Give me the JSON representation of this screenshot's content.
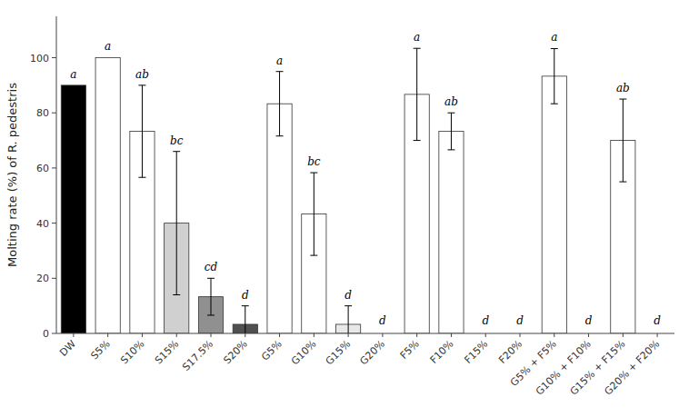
{
  "chart_data": {
    "type": "bar",
    "categories": [
      "DW",
      "S5%",
      "S10%",
      "S15%",
      "S17.5%",
      "S20%",
      "G5%",
      "G10%",
      "G15%",
      "G20%",
      "F5%",
      "F10%",
      "F15%",
      "F20%",
      "G5% + F5%",
      "G10% + F10%",
      "G15% + F15%",
      "G20% + F20%"
    ],
    "values": [
      90.0,
      100.0,
      73.3,
      40.0,
      13.3,
      3.3,
      83.3,
      43.3,
      3.3,
      0.0,
      86.7,
      73.3,
      0.0,
      0.0,
      93.3,
      0.0,
      70.0,
      0.0
    ],
    "errors": [
      0.0,
      0.0,
      16.7,
      26.0,
      6.7,
      6.7,
      11.7,
      15.0,
      6.7,
      0.0,
      16.7,
      6.7,
      0.0,
      0.0,
      10.0,
      0.0,
      15.0,
      0.0
    ],
    "annotations": [
      "a",
      "a",
      "ab",
      "bc",
      "cd",
      "d",
      "a",
      "bc",
      "d",
      "d",
      "a",
      "ab",
      "d",
      "d",
      "a",
      "d",
      "ab",
      "d"
    ],
    "colors": [
      "#000000",
      "#ffffff",
      "#ffffff",
      "#d0d0d0",
      "#909090",
      "#505050",
      "#ffffff",
      "#ffffff",
      "#e8e8e8",
      "#e8e8e8",
      "#ffffff",
      "#ffffff",
      "#ffffff",
      "#ffffff",
      "#ffffff",
      "#ffffff",
      "#ffffff",
      "#ffffff"
    ],
    "ylabel": "Molting rate (%) of R. pedestris",
    "ylim": [
      0,
      115
    ],
    "yticks": [
      0.0,
      20.0,
      40.0,
      60.0,
      80.0,
      100.0
    ],
    "grid": false
  }
}
